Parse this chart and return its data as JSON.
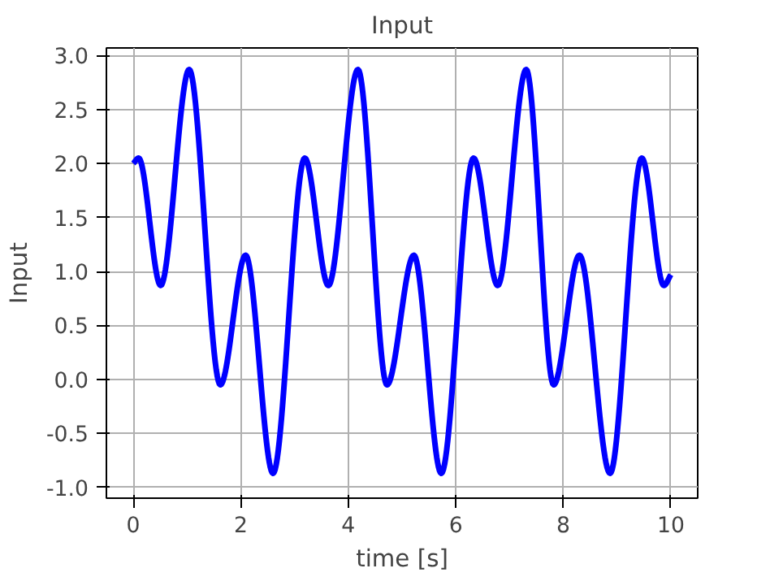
{
  "chart_data": {
    "type": "line",
    "title": "Input",
    "xlabel": "time [s]",
    "ylabel": "Input",
    "x": [
      0,
      0.1,
      0.51,
      1.04,
      1.62,
      2.09,
      2.6,
      3.19,
      3.63,
      4.18,
      4.72,
      5.22,
      5.73,
      6.33,
      6.78,
      7.31,
      7.82,
      8.3,
      8.87,
      9.46,
      9.87,
      10
    ],
    "series": [
      {
        "color": "#0000ff",
        "values": [
          2.0,
          2.05,
          0.87,
          2.87,
          -0.05,
          1.15,
          -0.87,
          2.05,
          0.87,
          2.87,
          -0.05,
          1.15,
          -0.87,
          2.05,
          0.87,
          2.87,
          -0.05,
          1.15,
          -0.87,
          2.05,
          0.87,
          0.97
        ]
      }
    ],
    "xlim": [
      -0.5,
      10.5
    ],
    "ylim": [
      -1.1,
      3.07
    ],
    "xticks": [
      0,
      2,
      4,
      6,
      8,
      10
    ],
    "yticks": [
      {
        "value": -1,
        "label": "-1.0"
      },
      {
        "value": -0.5,
        "label": "-0.5"
      },
      {
        "value": 0,
        "label": "0.0"
      },
      {
        "value": 0.5,
        "label": "0.5"
      },
      {
        "value": 1,
        "label": "1.0"
      },
      {
        "value": 1.5,
        "label": "1.5"
      },
      {
        "value": 2,
        "label": "2.0"
      },
      {
        "value": 2.5,
        "label": "2.5"
      },
      {
        "value": 3,
        "label": "3.0"
      }
    ],
    "grid": true,
    "line_style": "solid",
    "marker": "none"
  }
}
